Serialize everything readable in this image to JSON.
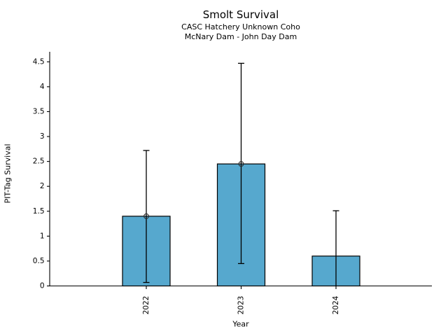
{
  "chart_data": {
    "type": "bar",
    "title": "Smolt Survival",
    "subtitle1": "CASC Hatchery Unknown Coho",
    "subtitle2": "McNary Dam - John Day Dam",
    "xlabel": "Year",
    "ylabel": "PIT-Tag Survival",
    "categories": [
      "2022",
      "2023",
      "2024"
    ],
    "values": [
      1.4,
      2.45,
      0.6
    ],
    "error_low": [
      0.07,
      0.45,
      0
    ],
    "error_high": [
      2.72,
      4.47,
      1.51
    ],
    "point_markers": [
      1.4,
      2.45,
      null
    ],
    "ylim": [
      0,
      4.72
    ],
    "ytick_values": [
      0,
      0.5,
      1,
      1.5,
      2,
      2.5,
      3,
      3.5,
      4,
      4.5
    ],
    "ytick_labels": [
      "0",
      "0.5",
      "1",
      "1.5",
      "2",
      "2.5",
      "3",
      "3.5",
      "4",
      "4.5"
    ],
    "grid": false,
    "legend": "none",
    "bar_color": "#56A8CE",
    "bar_edge_color": "#000000",
    "error_color": "#000000",
    "marker_edge_color": "#2a2a2a",
    "axis_color": "#000000",
    "background": "#FFFFFF"
  }
}
